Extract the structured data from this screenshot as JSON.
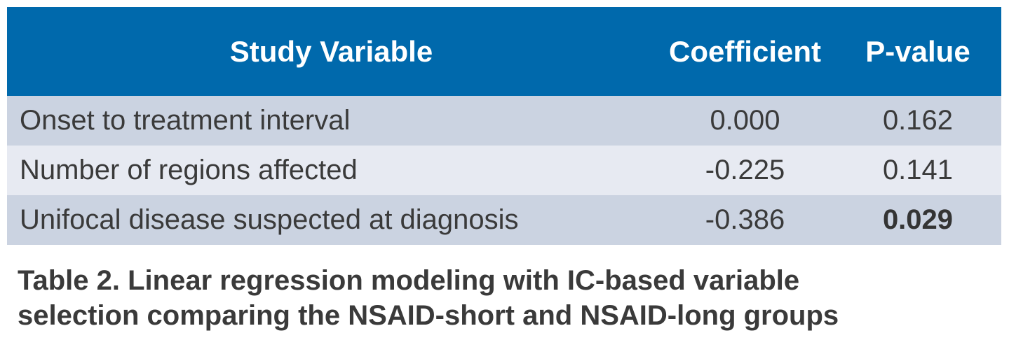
{
  "table": {
    "columns": [
      {
        "key": "variable",
        "label": "Study Variable"
      },
      {
        "key": "coefficient",
        "label": "Coefficient"
      },
      {
        "key": "p_value",
        "label": "P-value"
      }
    ],
    "rows": [
      {
        "variable": "Onset to treatment interval",
        "coefficient": "0.000",
        "p_value": "0.162",
        "significant": false
      },
      {
        "variable": "Number of regions affected",
        "coefficient": "-0.225",
        "p_value": "0.141",
        "significant": false
      },
      {
        "variable": "Unifocal disease suspected at diagnosis",
        "coefficient": "-0.386",
        "p_value": "0.029",
        "significant": true
      }
    ]
  },
  "caption": {
    "line1": "Table 2. Linear regression modeling with IC-based variable",
    "line2": "selection comparing the NSAID-short and NSAID-long groups"
  },
  "colors": {
    "header_bg": "#0069ac",
    "header_text": "#ffffff",
    "row_odd_bg": "#cbd3e1",
    "row_even_bg": "#e7eaf2",
    "body_text": "#3a3a3a",
    "page_bg": "#ffffff"
  }
}
